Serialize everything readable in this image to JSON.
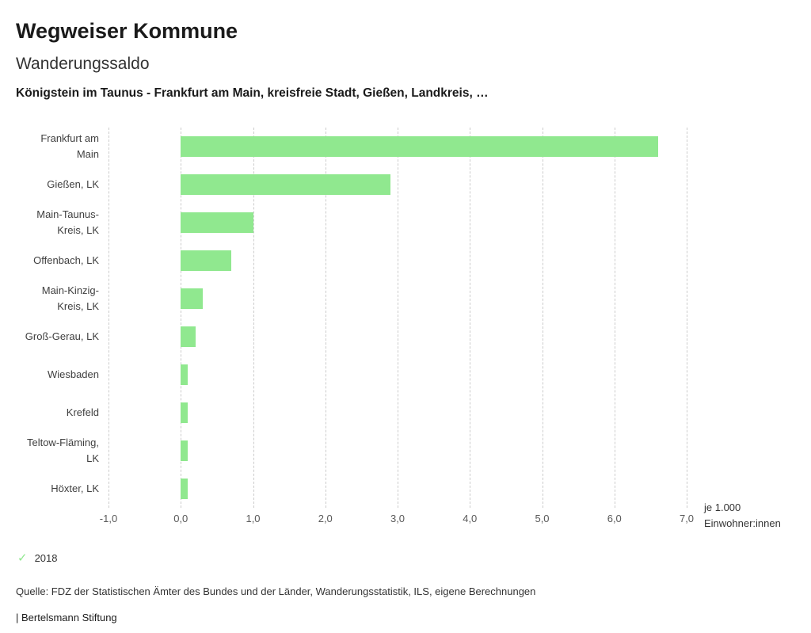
{
  "header": {
    "title": "Wegweiser Kommune",
    "subtitle": "Wanderungssaldo",
    "description": "Königstein im Taunus - Frankfurt am Main, kreisfreie Stadt, Gießen, Landkreis, …"
  },
  "chart_data": {
    "type": "bar",
    "orientation": "horizontal",
    "title": "Wanderungssaldo",
    "categories": [
      "Frankfurt am Main",
      "Gießen, LK",
      "Main-Taunus-Kreis, LK",
      "Offenbach, LK",
      "Main-Kinzig-Kreis, LK",
      "Groß-Gerau, LK",
      "Wiesbaden",
      "Krefeld",
      "Teltow-Fläming, LK",
      "Höxter, LK"
    ],
    "values": [
      6.6,
      2.9,
      1.0,
      0.7,
      0.3,
      0.2,
      0.1,
      0.1,
      0.1,
      0.1
    ],
    "series_name": "2018",
    "xlim": [
      -1.0,
      7.0
    ],
    "xticks": [
      "-1,0",
      "0,0",
      "1,0",
      "2,0",
      "3,0",
      "4,0",
      "5,0",
      "6,0",
      "7,0"
    ],
    "xtick_values": [
      -1,
      0,
      1,
      2,
      3,
      4,
      5,
      6,
      7
    ],
    "unit_line1": "je 1.000",
    "unit_line2": "Einwohner:innen",
    "bar_color": "#90e88f",
    "grid": "vertical-dashed",
    "legend_position": "bottom-left"
  },
  "legend": {
    "check_icon": "✓",
    "check_color": "#90e88f",
    "year": "2018"
  },
  "footer": {
    "source": "Quelle: FDZ der Statistischen Ämter des Bundes und der Länder, Wanderungsstatistik, ILS, eigene Berechnungen",
    "branding": "| Bertelsmann Stiftung"
  }
}
